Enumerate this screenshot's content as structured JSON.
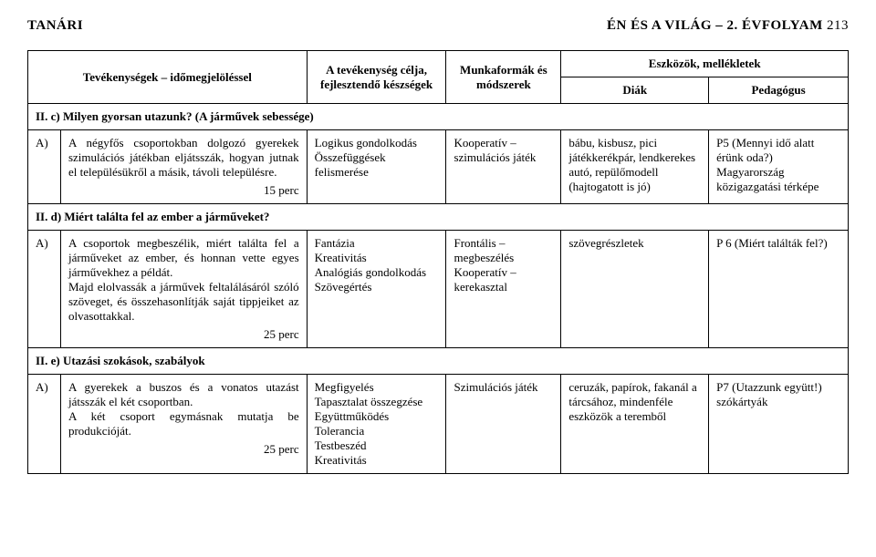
{
  "header": {
    "left": "TANÁRI",
    "right_title": "ÉN ÉS A VILÁG – 2. ÉVFOLYAM",
    "pagenum": "213"
  },
  "table": {
    "headers": {
      "activities": "Tevékenységek – időmegjelöléssel",
      "goal": "A tevékenység célja, fejlesztendő készségek",
      "forms": "Munkaformák és módszerek",
      "tools_group": "Eszközök, mellékletek",
      "diak": "Diák",
      "ped": "Pedagógus"
    },
    "sections": {
      "s1": "II. c) Milyen gyorsan utazunk? (A járművek sebessége)",
      "s2": "II. d) Miért találta fel az ember a járműveket?",
      "s3": "II. e) Utazási szokások, szabályok"
    },
    "rows": {
      "r1": {
        "id": "A)",
        "activity": "A négyfős csoportokban dolgozó gyerekek szimulációs játékban eljátsszák, hogyan jutnak el településükről a másik, távoli településre.",
        "time": "15 perc",
        "goal": "Logikus gondolkodás Összefüggések felismerése",
        "forms": "Kooperatív – szimulációs játék",
        "diak": "bábu, kisbusz, pici játékkerékpár, lendkerekes autó, repülőmodell (hajtogatott is jó)",
        "ped": "P5 (Mennyi idő alatt érünk oda?) Magyarország közigazgatási térképe"
      },
      "r2": {
        "id": "A)",
        "activity": "A csoportok megbeszélik, miért találta fel a járműveket az ember, és honnan vette egyes járművekhez a példát.\nMajd elolvassák a járművek feltalálásáról szóló szöveget, és összehasonlítják saját tippjeiket az olvasottakkal.",
        "time": "25 perc",
        "goal": "Fantázia\nKreativitás\nAnalógiás gondolkodás\nSzövegértés",
        "forms": "Frontális – megbeszélés\nKooperatív – kerekasztal",
        "diak": "szövegrészletek",
        "ped": "P 6 (Miért találták fel?)"
      },
      "r3": {
        "id": "A)",
        "activity": "A gyerekek a buszos és a vonatos utazást játsszák el két csoportban.\nA két csoport egymásnak mutatja be produkcióját.",
        "time": "25 perc",
        "goal": "Megfigyelés\nTapasztalat összegzése\nEgyüttműködés\nTolerancia\nTestbeszéd\nKreativitás",
        "forms": "Szimulációs játék",
        "diak": "ceruzák, papírok, fakanál a tárcsához, mindenféle eszközök a teremből",
        "ped": "P7 (Utazzunk együtt!) szókártyák"
      }
    }
  }
}
